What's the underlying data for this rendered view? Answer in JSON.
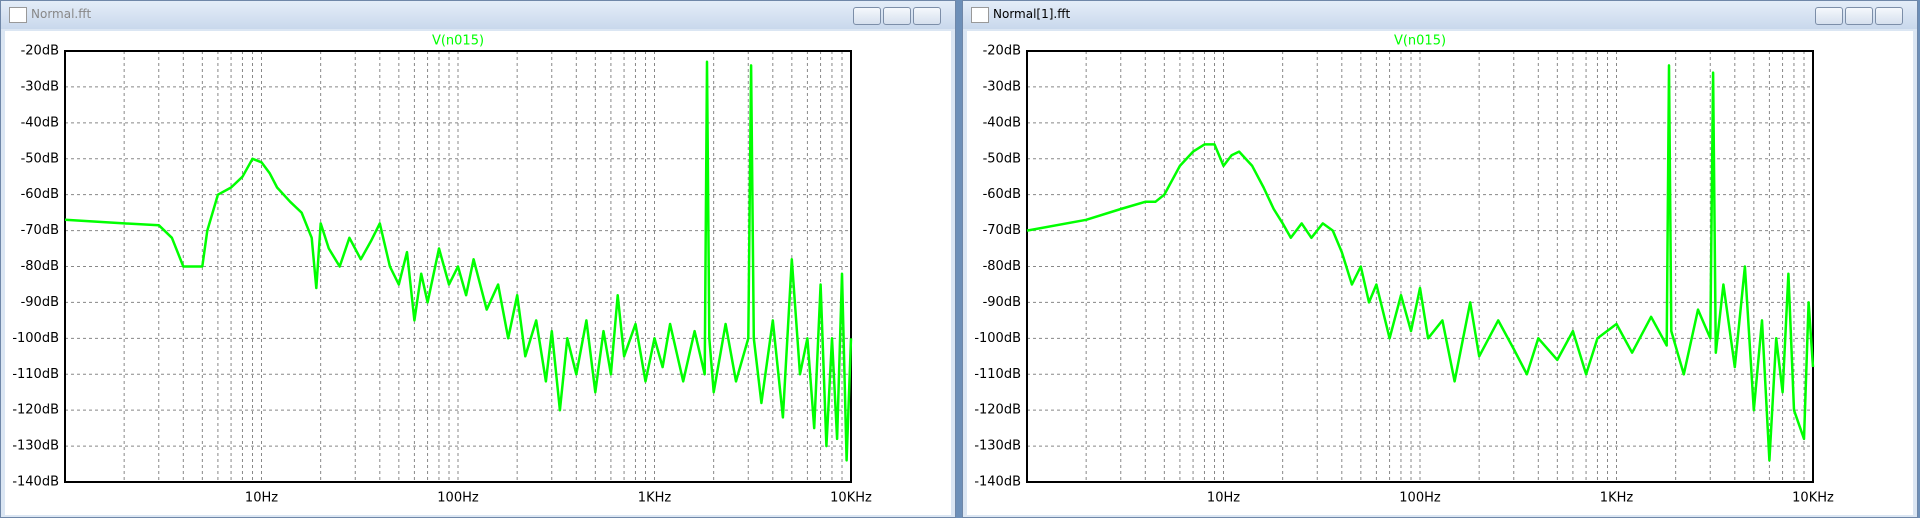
{
  "windows": [
    {
      "title": "Normal.fft"
    },
    {
      "title": "Normal[1].fft"
    }
  ],
  "chart_data": [
    {
      "type": "line",
      "title": "V(n015)",
      "color": "#00ff00",
      "xlog": true,
      "grid": true,
      "xlim": [
        1,
        10000
      ],
      "ylim": [
        -140,
        -20
      ],
      "xticks": [
        {
          "value": 10,
          "label": "10Hz"
        },
        {
          "value": 100,
          "label": "100Hz"
        },
        {
          "value": 1000,
          "label": "1KHz"
        },
        {
          "value": 10000,
          "label": "10KHz"
        }
      ],
      "xminorticks": [
        2,
        3,
        4,
        5,
        6,
        7,
        8,
        9,
        20,
        30,
        40,
        50,
        60,
        70,
        80,
        90,
        200,
        300,
        400,
        500,
        600,
        700,
        800,
        900,
        2000,
        3000,
        4000,
        5000,
        6000,
        7000,
        8000,
        9000
      ],
      "yticks": [
        {
          "value": -20,
          "label": "-20dB"
        },
        {
          "value": -30,
          "label": "-30dB"
        },
        {
          "value": -40,
          "label": "-40dB"
        },
        {
          "value": -50,
          "label": "-50dB"
        },
        {
          "value": -60,
          "label": "-60dB"
        },
        {
          "value": -70,
          "label": "-70dB"
        },
        {
          "value": -80,
          "label": "-80dB"
        },
        {
          "value": -90,
          "label": "-90dB"
        },
        {
          "value": -100,
          "label": "-100dB"
        },
        {
          "value": -110,
          "label": "-110dB"
        },
        {
          "value": -120,
          "label": "-120dB"
        },
        {
          "value": -130,
          "label": "-130dB"
        },
        {
          "value": -140,
          "label": "-140dB"
        }
      ],
      "x": [
        1,
        2,
        3,
        3.5,
        4,
        5,
        5.3,
        6,
        7,
        8,
        9,
        10,
        11,
        12,
        14,
        16,
        18,
        19,
        20,
        22,
        25,
        28,
        32,
        36,
        40,
        45,
        50,
        55,
        60,
        65,
        70,
        80,
        90,
        100,
        110,
        120,
        140,
        160,
        180,
        200,
        220,
        250,
        280,
        300,
        330,
        360,
        400,
        450,
        500,
        550,
        600,
        650,
        700,
        800,
        900,
        1000,
        1100,
        1200,
        1400,
        1600,
        1800,
        1850,
        1900,
        2000,
        2300,
        2600,
        3000,
        3100,
        3200,
        3500,
        4000,
        4500,
        5000,
        5500,
        6000,
        6500,
        7000,
        7500,
        8000,
        8500,
        9000,
        9500,
        10000
      ],
      "values": [
        -67,
        -68,
        -68.5,
        -72,
        -80,
        -80,
        -70,
        -60,
        -58,
        -55,
        -50,
        -51,
        -54,
        -58,
        -62,
        -65,
        -72,
        -86,
        -68,
        -75,
        -80,
        -72,
        -78,
        -73,
        -68,
        -80,
        -85,
        -76,
        -95,
        -82,
        -90,
        -75,
        -85,
        -80,
        -88,
        -78,
        -92,
        -85,
        -100,
        -88,
        -105,
        -95,
        -112,
        -98,
        -120,
        -100,
        -110,
        -95,
        -115,
        -98,
        -110,
        -88,
        -105,
        -96,
        -112,
        -100,
        -108,
        -96,
        -112,
        -98,
        -110,
        -23,
        -100,
        -115,
        -96,
        -112,
        -100,
        -24,
        -100,
        -118,
        -95,
        -122,
        -78,
        -110,
        -100,
        -125,
        -85,
        -130,
        -100,
        -128,
        -82,
        -134,
        -100
      ]
    },
    {
      "type": "line",
      "title": "V(n015)",
      "color": "#00ff00",
      "xlog": true,
      "grid": true,
      "xlim": [
        1,
        10000
      ],
      "ylim": [
        -140,
        -20
      ],
      "xticks": [
        {
          "value": 10,
          "label": "10Hz"
        },
        {
          "value": 100,
          "label": "100Hz"
        },
        {
          "value": 1000,
          "label": "1KHz"
        },
        {
          "value": 10000,
          "label": "10KHz"
        }
      ],
      "xminorticks": [
        2,
        3,
        4,
        5,
        6,
        7,
        8,
        9,
        20,
        30,
        40,
        50,
        60,
        70,
        80,
        90,
        200,
        300,
        400,
        500,
        600,
        700,
        800,
        900,
        2000,
        3000,
        4000,
        5000,
        6000,
        7000,
        8000,
        9000
      ],
      "yticks": [
        {
          "value": -20,
          "label": "-20dB"
        },
        {
          "value": -30,
          "label": "-30dB"
        },
        {
          "value": -40,
          "label": "-40dB"
        },
        {
          "value": -50,
          "label": "-50dB"
        },
        {
          "value": -60,
          "label": "-60dB"
        },
        {
          "value": -70,
          "label": "-70dB"
        },
        {
          "value": -80,
          "label": "-80dB"
        },
        {
          "value": -90,
          "label": "-90dB"
        },
        {
          "value": -100,
          "label": "-100dB"
        },
        {
          "value": -110,
          "label": "-110dB"
        },
        {
          "value": -120,
          "label": "-120dB"
        },
        {
          "value": -130,
          "label": "-130dB"
        },
        {
          "value": -140,
          "label": "-140dB"
        }
      ],
      "x": [
        1,
        2,
        3,
        4,
        4.5,
        5,
        6,
        7,
        8,
        9,
        10,
        11,
        12,
        14,
        16,
        18,
        20,
        22,
        25,
        28,
        32,
        36,
        40,
        45,
        50,
        55,
        60,
        70,
        80,
        90,
        100,
        110,
        130,
        150,
        180,
        200,
        250,
        300,
        350,
        400,
        500,
        600,
        700,
        800,
        1000,
        1200,
        1500,
        1800,
        1850,
        1900,
        2200,
        2600,
        3000,
        3100,
        3200,
        3500,
        4000,
        4500,
        5000,
        5500,
        6000,
        6500,
        7000,
        7500,
        8000,
        9000,
        9500,
        10000
      ],
      "values": [
        -70,
        -67,
        -64,
        -62,
        -62,
        -60,
        -52,
        -48,
        -46,
        -46,
        -52,
        -49,
        -48,
        -52,
        -58,
        -64,
        -68,
        -72,
        -68,
        -72,
        -68,
        -70,
        -76,
        -85,
        -80,
        -90,
        -85,
        -100,
        -88,
        -98,
        -86,
        -100,
        -95,
        -112,
        -90,
        -105,
        -95,
        -103,
        -110,
        -100,
        -106,
        -98,
        -110,
        -100,
        -96,
        -104,
        -94,
        -102,
        -24,
        -98,
        -110,
        -92,
        -100,
        -26,
        -104,
        -85,
        -108,
        -80,
        -120,
        -95,
        -134,
        -100,
        -115,
        -82,
        -120,
        -128,
        -90,
        -108
      ]
    }
  ]
}
